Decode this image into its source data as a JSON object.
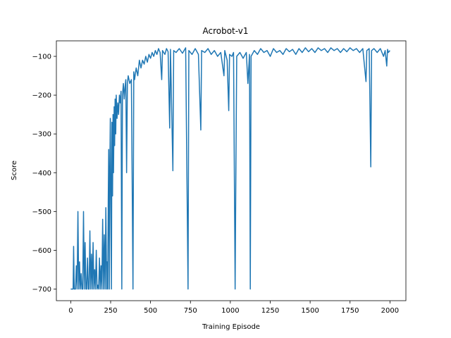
{
  "chart_data": {
    "type": "line",
    "title": "Acrobot-v1",
    "xlabel": "Training Episode",
    "ylabel": "Score",
    "xlim": [
      -90,
      2100
    ],
    "ylim": [
      -730,
      -60
    ],
    "xticks": [
      0,
      250,
      500,
      750,
      1000,
      1250,
      1500,
      1750,
      2000
    ],
    "xtick_labels": [
      "0",
      "250",
      "500",
      "750",
      "1000",
      "1250",
      "1500",
      "1750",
      "2000"
    ],
    "yticks": [
      -700,
      -600,
      -500,
      -400,
      -300,
      -200,
      -100
    ],
    "ytick_labels": [
      "−700",
      "−600",
      "−500",
      "−400",
      "−300",
      "−200",
      "−100"
    ],
    "grid": false,
    "legend": "none",
    "series": [
      {
        "color": "#1f77b4",
        "points": [
          [
            0,
            -700
          ],
          [
            10,
            -700
          ],
          [
            15,
            -700
          ],
          [
            18,
            -590
          ],
          [
            22,
            -700
          ],
          [
            30,
            -700
          ],
          [
            35,
            -640
          ],
          [
            40,
            -700
          ],
          [
            45,
            -500
          ],
          [
            50,
            -700
          ],
          [
            55,
            -630
          ],
          [
            60,
            -700
          ],
          [
            65,
            -660
          ],
          [
            70,
            -700
          ],
          [
            75,
            -700
          ],
          [
            80,
            -500
          ],
          [
            85,
            -700
          ],
          [
            90,
            -580
          ],
          [
            95,
            -700
          ],
          [
            100,
            -700
          ],
          [
            105,
            -620
          ],
          [
            110,
            -700
          ],
          [
            115,
            -700
          ],
          [
            120,
            -550
          ],
          [
            125,
            -700
          ],
          [
            130,
            -610
          ],
          [
            135,
            -700
          ],
          [
            140,
            -580
          ],
          [
            145,
            -700
          ],
          [
            150,
            -650
          ],
          [
            155,
            -700
          ],
          [
            160,
            -600
          ],
          [
            165,
            -700
          ],
          [
            170,
            -690
          ],
          [
            175,
            -700
          ],
          [
            180,
            -620
          ],
          [
            185,
            -700
          ],
          [
            190,
            -640
          ],
          [
            195,
            -700
          ],
          [
            200,
            -520
          ],
          [
            205,
            -700
          ],
          [
            210,
            -560
          ],
          [
            215,
            -700
          ],
          [
            220,
            -490
          ],
          [
            225,
            -700
          ],
          [
            228,
            -630
          ],
          [
            232,
            -700
          ],
          [
            235,
            -470
          ],
          [
            238,
            -340
          ],
          [
            242,
            -700
          ],
          [
            245,
            -390
          ],
          [
            248,
            -260
          ],
          [
            252,
            -500
          ],
          [
            255,
            -700
          ],
          [
            258,
            -270
          ],
          [
            262,
            -460
          ],
          [
            265,
            -250
          ],
          [
            268,
            -400
          ],
          [
            272,
            -230
          ],
          [
            275,
            -330
          ],
          [
            278,
            -210
          ],
          [
            282,
            -300
          ],
          [
            285,
            -200
          ],
          [
            290,
            -260
          ],
          [
            295,
            -220
          ],
          [
            300,
            -250
          ],
          [
            305,
            -200
          ],
          [
            310,
            -220
          ],
          [
            315,
            -190
          ],
          [
            320,
            -700
          ],
          [
            324,
            -200
          ],
          [
            330,
            -170
          ],
          [
            335,
            -210
          ],
          [
            340,
            -180
          ],
          [
            345,
            -160
          ],
          [
            350,
            -400
          ],
          [
            355,
            -170
          ],
          [
            360,
            -150
          ],
          [
            370,
            -170
          ],
          [
            380,
            -160
          ],
          [
            390,
            -700
          ],
          [
            395,
            -140
          ],
          [
            400,
            -160
          ],
          [
            410,
            -130
          ],
          [
            420,
            -150
          ],
          [
            430,
            -110
          ],
          [
            440,
            -130
          ],
          [
            450,
            -110
          ],
          [
            460,
            -120
          ],
          [
            470,
            -100
          ],
          [
            480,
            -115
          ],
          [
            490,
            -95
          ],
          [
            500,
            -105
          ],
          [
            510,
            -90
          ],
          [
            520,
            -100
          ],
          [
            530,
            -85
          ],
          [
            540,
            -95
          ],
          [
            550,
            -80
          ],
          [
            560,
            -90
          ],
          [
            570,
            -160
          ],
          [
            575,
            -85
          ],
          [
            590,
            -95
          ],
          [
            600,
            -80
          ],
          [
            610,
            -88
          ],
          [
            620,
            -285
          ],
          [
            625,
            -82
          ],
          [
            640,
            -395
          ],
          [
            645,
            -85
          ],
          [
            660,
            -90
          ],
          [
            680,
            -80
          ],
          [
            700,
            -92
          ],
          [
            720,
            -78
          ],
          [
            735,
            -700
          ],
          [
            740,
            -85
          ],
          [
            760,
            -95
          ],
          [
            780,
            -80
          ],
          [
            800,
            -95
          ],
          [
            815,
            -290
          ],
          [
            820,
            -85
          ],
          [
            840,
            -90
          ],
          [
            860,
            -80
          ],
          [
            880,
            -95
          ],
          [
            900,
            -85
          ],
          [
            920,
            -100
          ],
          [
            940,
            -90
          ],
          [
            960,
            -150
          ],
          [
            965,
            -85
          ],
          [
            980,
            -110
          ],
          [
            990,
            -240
          ],
          [
            995,
            -95
          ],
          [
            1010,
            -100
          ],
          [
            1020,
            -90
          ],
          [
            1030,
            -700
          ],
          [
            1035,
            -380
          ],
          [
            1040,
            -100
          ],
          [
            1060,
            -90
          ],
          [
            1080,
            -105
          ],
          [
            1100,
            -90
          ],
          [
            1110,
            -170
          ],
          [
            1120,
            -95
          ],
          [
            1125,
            -700
          ],
          [
            1130,
            -100
          ],
          [
            1150,
            -85
          ],
          [
            1170,
            -95
          ],
          [
            1190,
            -80
          ],
          [
            1210,
            -90
          ],
          [
            1230,
            -85
          ],
          [
            1250,
            -100
          ],
          [
            1270,
            -80
          ],
          [
            1290,
            -90
          ],
          [
            1310,
            -85
          ],
          [
            1330,
            -95
          ],
          [
            1350,
            -80
          ],
          [
            1370,
            -88
          ],
          [
            1390,
            -82
          ],
          [
            1410,
            -95
          ],
          [
            1430,
            -80
          ],
          [
            1450,
            -90
          ],
          [
            1470,
            -78
          ],
          [
            1490,
            -88
          ],
          [
            1510,
            -80
          ],
          [
            1530,
            -90
          ],
          [
            1550,
            -78
          ],
          [
            1570,
            -85
          ],
          [
            1590,
            -80
          ],
          [
            1610,
            -90
          ],
          [
            1630,
            -78
          ],
          [
            1650,
            -85
          ],
          [
            1670,
            -80
          ],
          [
            1690,
            -90
          ],
          [
            1710,
            -80
          ],
          [
            1730,
            -88
          ],
          [
            1750,
            -78
          ],
          [
            1770,
            -85
          ],
          [
            1790,
            -80
          ],
          [
            1810,
            -90
          ],
          [
            1830,
            -80
          ],
          [
            1850,
            -165
          ],
          [
            1855,
            -85
          ],
          [
            1870,
            -80
          ],
          [
            1880,
            -385
          ],
          [
            1885,
            -85
          ],
          [
            1900,
            -80
          ],
          [
            1920,
            -90
          ],
          [
            1940,
            -80
          ],
          [
            1960,
            -100
          ],
          [
            1970,
            -85
          ],
          [
            1980,
            -125
          ],
          [
            1985,
            -82
          ],
          [
            1990,
            -90
          ],
          [
            2000,
            -85
          ]
        ]
      }
    ]
  }
}
